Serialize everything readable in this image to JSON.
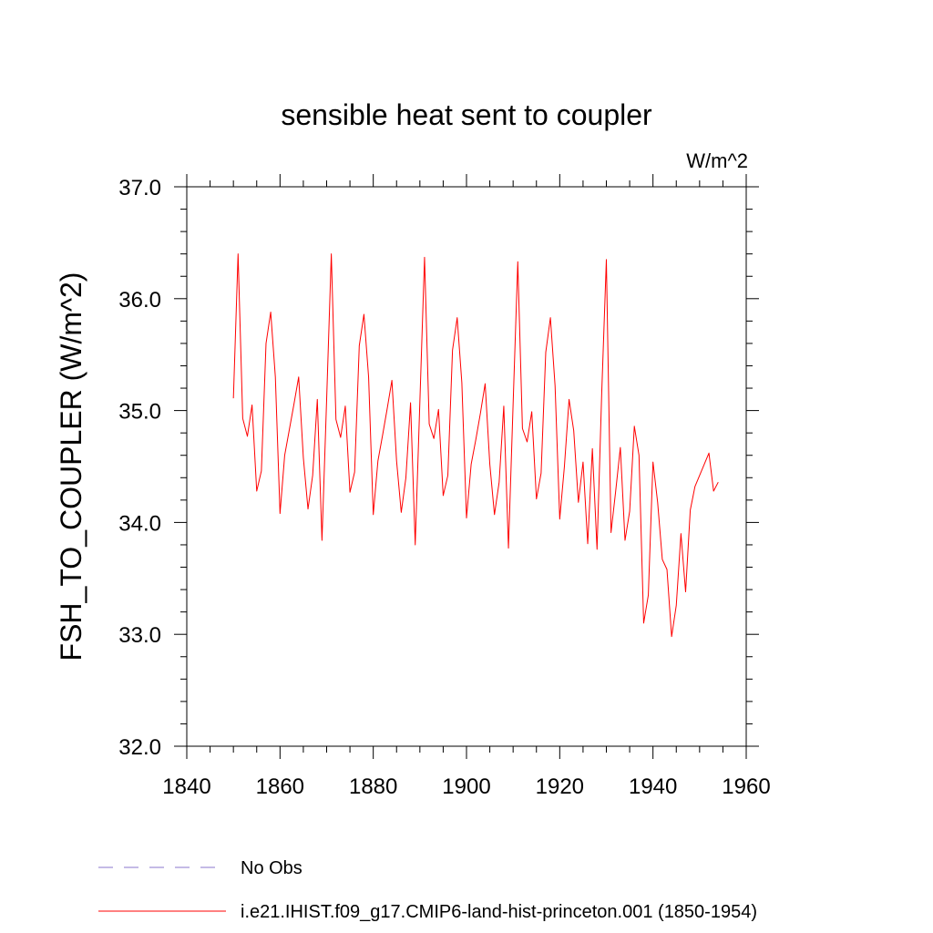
{
  "colors": {
    "series": "#ff0000",
    "obs": "#8877cc",
    "axis": "#000000",
    "background": "#ffffff"
  },
  "legend": {
    "position": "bottom-left",
    "items": [
      {
        "label": "No Obs",
        "style": "dashed",
        "color": "#8877cc"
      },
      {
        "label": "i.e21.IHIST.f09_g17.CMIP6-land-hist-princeton.001 (1850-1954)",
        "style": "solid",
        "color": "#ff0000"
      }
    ]
  },
  "chart_data": {
    "type": "line",
    "title": "sensible heat sent to coupler",
    "units": "W/m^2",
    "xlabel": "",
    "ylabel": "FSH_TO_COUPLER  (W/m^2)",
    "xlim": [
      1840,
      1960
    ],
    "ylim": [
      32.0,
      37.0
    ],
    "x_ticks": [
      "1840",
      "1860",
      "1880",
      "1900",
      "1920",
      "1940",
      "1960"
    ],
    "y_ticks": [
      "32.0",
      "33.0",
      "34.0",
      "35.0",
      "36.0",
      "37.0"
    ],
    "x_minor_step": 5,
    "y_minor_step": 0.2,
    "grid": false,
    "series": [
      {
        "name": "i.e21.IHIST.f09_g17.CMIP6-land-hist-princeton.001 (1850-1954)",
        "color": "#ff0000",
        "x": [
          1850,
          1851,
          1852,
          1853,
          1854,
          1855,
          1856,
          1857,
          1858,
          1859,
          1860,
          1861,
          1862,
          1863,
          1864,
          1865,
          1866,
          1867,
          1868,
          1869,
          1870,
          1871,
          1872,
          1873,
          1874,
          1875,
          1876,
          1877,
          1878,
          1879,
          1880,
          1881,
          1882,
          1883,
          1884,
          1885,
          1886,
          1887,
          1888,
          1889,
          1890,
          1891,
          1892,
          1893,
          1894,
          1895,
          1896,
          1897,
          1898,
          1899,
          1900,
          1901,
          1902,
          1903,
          1904,
          1905,
          1906,
          1907,
          1908,
          1909,
          1910,
          1911,
          1912,
          1913,
          1914,
          1915,
          1916,
          1917,
          1918,
          1919,
          1920,
          1921,
          1922,
          1923,
          1924,
          1925,
          1926,
          1927,
          1928,
          1929,
          1930,
          1931,
          1932,
          1933,
          1934,
          1935,
          1936,
          1937,
          1938,
          1939,
          1940,
          1941,
          1942,
          1943,
          1944,
          1945,
          1946,
          1947,
          1948,
          1949,
          1950,
          1951,
          1952,
          1953,
          1954
        ],
        "values": [
          35.11,
          36.4,
          34.93,
          34.77,
          35.05,
          34.28,
          34.46,
          35.6,
          35.88,
          35.3,
          34.08,
          34.6,
          34.83,
          35.06,
          35.3,
          34.58,
          34.12,
          34.42,
          35.1,
          33.84,
          35.1,
          36.4,
          34.92,
          34.76,
          35.04,
          34.27,
          34.45,
          35.58,
          35.86,
          35.3,
          34.07,
          34.55,
          34.78,
          35.02,
          35.27,
          34.55,
          34.09,
          34.4,
          35.07,
          33.8,
          35.08,
          36.37,
          34.88,
          34.75,
          35.01,
          34.24,
          34.42,
          35.54,
          35.83,
          35.25,
          34.04,
          34.52,
          34.74,
          34.98,
          35.24,
          34.52,
          34.07,
          34.36,
          35.04,
          33.77,
          35.06,
          36.33,
          34.84,
          34.72,
          34.99,
          34.21,
          34.44,
          35.52,
          35.83,
          35.22,
          34.03,
          34.5,
          35.1,
          34.82,
          34.18,
          34.54,
          33.81,
          34.66,
          33.76,
          35.15,
          36.35,
          33.91,
          34.28,
          34.67,
          33.84,
          34.1,
          34.86,
          34.6,
          33.1,
          33.35,
          34.54,
          34.18,
          33.67,
          33.58,
          32.98,
          33.26,
          33.9,
          33.38,
          34.11,
          34.32,
          34.42,
          34.52,
          34.62,
          34.28,
          34.36
        ]
      }
    ]
  }
}
